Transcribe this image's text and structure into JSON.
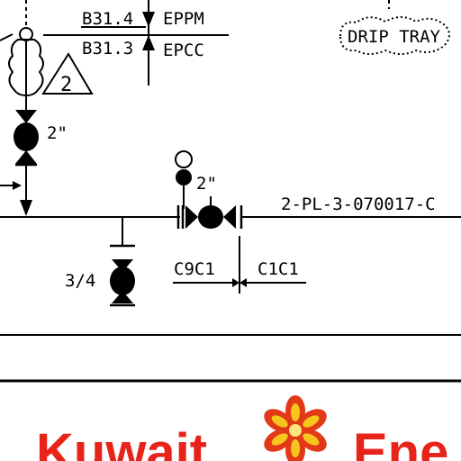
{
  "drawing": {
    "instrument_tags": {
      "upper_code": "B31.4",
      "upper_spec": "EPPM",
      "lower_code": "B31.3",
      "lower_spec": "EPCC"
    },
    "cloud_label": "DRIP TRAY",
    "revision_marker": "2",
    "valve_sizes": {
      "vertical_valve": "2\"",
      "inline_valve": "2\"",
      "drain_valve": "3/4"
    },
    "line_number": "2-PL-3-070017-C",
    "spec_break": {
      "left": "C9C1",
      "right": "C1C1"
    }
  },
  "logo": {
    "word_left": "Kuwait",
    "word_right": "Ene",
    "colors": {
      "text": "#e8231a",
      "flower_outer": "#e23a17",
      "flower_inner": "#f7c51e"
    }
  }
}
